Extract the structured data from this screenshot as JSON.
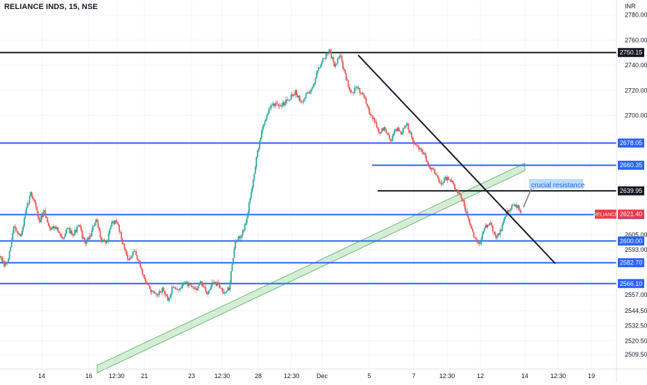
{
  "header": {
    "symbol_title": "RELIANCE INDS, 15, NSE",
    "currency": "INR"
  },
  "chart_data": {
    "type": "candlestick",
    "title": "RELIANCE INDS, 15, NSE",
    "ylabel": "INR",
    "ylim": [
      2498,
      2792
    ],
    "price_ticks": [
      "2780.00",
      "2760.00",
      "2740.00",
      "2720.00",
      "2700.00",
      "2605.00",
      "2593.00",
      "2557.00",
      "2544.50",
      "2532.50",
      "2520.50",
      "2509.50"
    ],
    "time_ticks": [
      {
        "label": "14",
        "t": 1.5
      },
      {
        "label": "16",
        "t": 3.2
      },
      {
        "label": "12:30",
        "t": 4.2
      },
      {
        "label": "21",
        "t": 5.2
      },
      {
        "label": "23",
        "t": 6.9
      },
      {
        "label": "12:30",
        "t": 8.0
      },
      {
        "label": "28",
        "t": 9.3
      },
      {
        "label": "12:30",
        "t": 10.5
      },
      {
        "label": "Dec",
        "t": 11.6
      },
      {
        "label": "5",
        "t": 13.3
      },
      {
        "label": "7",
        "t": 14.9
      },
      {
        "label": "12:30",
        "t": 16.1
      },
      {
        "label": "12",
        "t": 17.3
      },
      {
        "label": "14",
        "t": 18.9
      },
      {
        "label": "12:30",
        "t": 20.1
      },
      {
        "label": "19",
        "t": 21.3
      }
    ],
    "price_path": [
      [
        0.0,
        2588
      ],
      [
        0.15,
        2580
      ],
      [
        0.3,
        2584
      ],
      [
        0.5,
        2612
      ],
      [
        0.75,
        2603
      ],
      [
        0.95,
        2625
      ],
      [
        1.1,
        2638
      ],
      [
        1.25,
        2632
      ],
      [
        1.4,
        2615
      ],
      [
        1.6,
        2623
      ],
      [
        1.8,
        2610
      ],
      [
        2.0,
        2612
      ],
      [
        2.2,
        2602
      ],
      [
        2.45,
        2609
      ],
      [
        2.65,
        2606
      ],
      [
        2.85,
        2612
      ],
      [
        3.05,
        2598
      ],
      [
        3.25,
        2604
      ],
      [
        3.45,
        2617
      ],
      [
        3.65,
        2601
      ],
      [
        3.85,
        2599
      ],
      [
        4.05,
        2616
      ],
      [
        4.25,
        2613
      ],
      [
        4.45,
        2596
      ],
      [
        4.65,
        2584
      ],
      [
        4.85,
        2592
      ],
      [
        5.05,
        2580
      ],
      [
        5.25,
        2567
      ],
      [
        5.45,
        2560
      ],
      [
        5.65,
        2555
      ],
      [
        5.85,
        2562
      ],
      [
        6.05,
        2552
      ],
      [
        6.25,
        2565
      ],
      [
        6.45,
        2560
      ],
      [
        6.65,
        2568
      ],
      [
        6.85,
        2563
      ],
      [
        7.05,
        2562
      ],
      [
        7.25,
        2567
      ],
      [
        7.45,
        2558
      ],
      [
        7.65,
        2567
      ],
      [
        7.85,
        2565
      ],
      [
        8.05,
        2560
      ],
      [
        8.25,
        2562
      ],
      [
        8.45,
        2597
      ],
      [
        8.65,
        2604
      ],
      [
        8.85,
        2613
      ],
      [
        9.05,
        2640
      ],
      [
        9.25,
        2668
      ],
      [
        9.45,
        2690
      ],
      [
        9.65,
        2703
      ],
      [
        9.85,
        2710
      ],
      [
        10.05,
        2706
      ],
      [
        10.25,
        2711
      ],
      [
        10.45,
        2715
      ],
      [
        10.65,
        2719
      ],
      [
        10.85,
        2709
      ],
      [
        11.05,
        2718
      ],
      [
        11.25,
        2721
      ],
      [
        11.45,
        2738
      ],
      [
        11.65,
        2745
      ],
      [
        11.85,
        2752
      ],
      [
        12.05,
        2740
      ],
      [
        12.25,
        2748
      ],
      [
        12.45,
        2730
      ],
      [
        12.65,
        2718
      ],
      [
        12.85,
        2722
      ],
      [
        13.05,
        2718
      ],
      [
        13.25,
        2705
      ],
      [
        13.45,
        2698
      ],
      [
        13.65,
        2686
      ],
      [
        13.85,
        2690
      ],
      [
        14.05,
        2679
      ],
      [
        14.25,
        2690
      ],
      [
        14.45,
        2686
      ],
      [
        14.65,
        2693
      ],
      [
        14.85,
        2680
      ],
      [
        15.05,
        2674
      ],
      [
        15.25,
        2670
      ],
      [
        15.45,
        2660
      ],
      [
        15.65,
        2656
      ],
      [
        15.85,
        2646
      ],
      [
        16.05,
        2650
      ],
      [
        16.25,
        2647
      ],
      [
        16.45,
        2640
      ],
      [
        16.65,
        2633
      ],
      [
        16.85,
        2618
      ],
      [
        17.05,
        2604
      ],
      [
        17.25,
        2597
      ],
      [
        17.45,
        2610
      ],
      [
        17.65,
        2615
      ],
      [
        17.85,
        2602
      ],
      [
        18.05,
        2609
      ],
      [
        18.25,
        2624
      ],
      [
        18.45,
        2628
      ],
      [
        18.65,
        2628
      ],
      [
        18.8,
        2621
      ]
    ],
    "horizontal_levels": [
      {
        "name": "level-2750",
        "price": 2750.15,
        "label": "2750.15",
        "color": "#131722",
        "t_start": 0,
        "t_end": 22.2
      },
      {
        "name": "level-2678",
        "price": 2678.05,
        "label": "2678.05",
        "color": "#2962ff",
        "t_start": 0,
        "t_end": 22.2
      },
      {
        "name": "level-2660",
        "price": 2660.35,
        "label": "2660.35",
        "color": "#2962ff",
        "t_start": 13.4,
        "t_end": 22.2
      },
      {
        "name": "level-2640",
        "price": 2639.95,
        "label": "2639.95",
        "color": "#131722",
        "t_start": 13.6,
        "t_end": 22.2
      },
      {
        "name": "level-2621",
        "price": 2621.05,
        "label": "2621.05",
        "color": "#2962ff",
        "t_start": 0,
        "t_end": 22.2
      },
      {
        "name": "level-2600",
        "price": 2600.0,
        "label": "2600.00",
        "color": "#2962ff",
        "t_start": 0,
        "t_end": 22.2
      },
      {
        "name": "level-2582",
        "price": 2582.7,
        "label": "2582.70",
        "color": "#2962ff",
        "t_start": 0,
        "t_end": 22.2
      },
      {
        "name": "level-2566",
        "price": 2566.1,
        "label": "2566.10",
        "color": "#2962ff",
        "t_start": 0,
        "t_end": 22.2
      }
    ],
    "current_price": {
      "symbol": "RELIANCE",
      "price": 2621.4,
      "label": "2621.40",
      "color": "#f23645"
    },
    "trendline": {
      "color": "#131722",
      "from": [
        12.9,
        2748
      ],
      "to": [
        20.0,
        2582
      ]
    },
    "channel": {
      "color": "#66bb6a",
      "fill": "#c8e6c9",
      "from": [
        3.5,
        2498
      ],
      "to": [
        18.9,
        2659
      ],
      "width_price": 6
    },
    "annotation": {
      "text": "crucial resistance",
      "t": 19.05,
      "price": 2645,
      "bg": "#bbdefb",
      "color": "#2962ff"
    },
    "arrow": {
      "color": "#787b86",
      "from": [
        18.85,
        2627
      ],
      "to": [
        19.2,
        2645
      ]
    }
  }
}
